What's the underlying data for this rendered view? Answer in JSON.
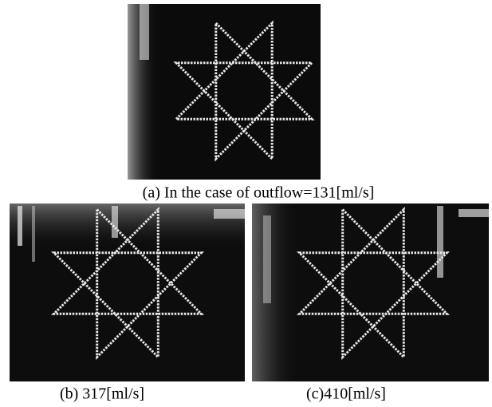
{
  "figure": {
    "panels": [
      {
        "caption": "(a) In the case of outflow=131[ml/s]"
      },
      {
        "caption": "(b) 317[ml/s]"
      },
      {
        "caption": "(c)410[ml/s]"
      }
    ]
  }
}
